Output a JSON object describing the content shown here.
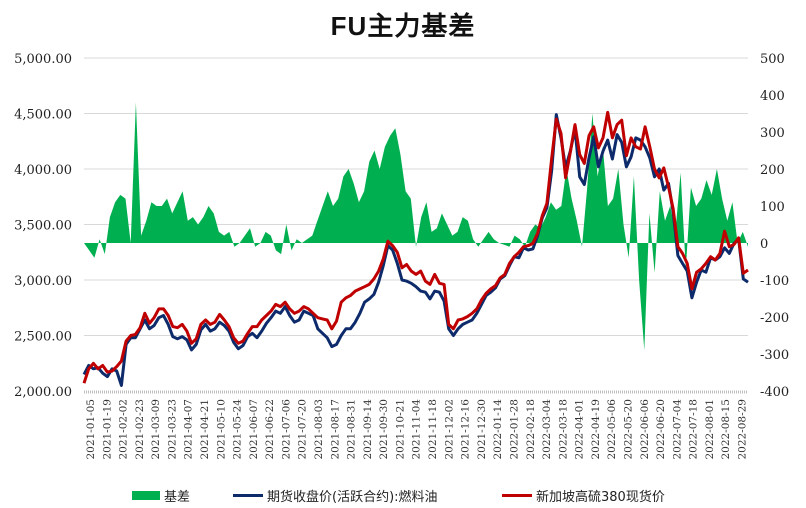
{
  "title": "FU主力基差",
  "chart_data": {
    "type": "line+area",
    "title": "FU主力基差",
    "left_axis": {
      "ticks": [
        "5,000.00",
        "4,500.00",
        "4,000.00",
        "3,500.00",
        "3,000.00",
        "2,500.00",
        "2,000.00"
      ],
      "ylim": [
        2000,
        5000
      ]
    },
    "right_axis": {
      "ticks": [
        "500",
        "400",
        "300",
        "200",
        "100",
        "0",
        "-100",
        "-200",
        "-300",
        "-400"
      ],
      "ylim": [
        -400,
        500
      ]
    },
    "grid": true,
    "legend_position": "bottom",
    "x_ticks": [
      "2021-01-05",
      "2021-01-19",
      "2021-02-02",
      "2021-02-23",
      "2021-03-09",
      "2021-03-23",
      "2021-04-07",
      "2021-04-21",
      "2021-05-10",
      "2021-05-24",
      "2021-06-07",
      "2021-06-22",
      "2021-07-06",
      "2021-07-20",
      "2021-08-03",
      "2021-08-17",
      "2021-08-31",
      "2021-09-14",
      "2021-09-30",
      "2021-10-21",
      "2021-11-04",
      "2021-11-18",
      "2021-12-02",
      "2021-12-16",
      "2021-12-30",
      "2022-01-14",
      "2022-01-28",
      "2022-02-18",
      "2022-03-04",
      "2022-03-18",
      "2022-04-01",
      "2022-04-19",
      "2022-05-06",
      "2022-05-20",
      "2022-06-06",
      "2022-06-20",
      "2022-07-04",
      "2022-07-18",
      "2022-08-01",
      "2022-08-15",
      "2022-08-29"
    ],
    "series": [
      {
        "name": "基差",
        "axis": "right",
        "type": "area",
        "color": "#00b050",
        "values": [
          0,
          -20,
          -40,
          10,
          -30,
          70,
          110,
          130,
          120,
          0,
          380,
          20,
          60,
          110,
          100,
          100,
          120,
          80,
          110,
          140,
          60,
          70,
          50,
          70,
          100,
          80,
          30,
          20,
          30,
          -10,
          0,
          20,
          40,
          -10,
          0,
          30,
          20,
          -20,
          -30,
          50,
          -20,
          10,
          0,
          10,
          20,
          60,
          100,
          140,
          100,
          120,
          180,
          200,
          160,
          110,
          140,
          220,
          250,
          200,
          260,
          290,
          310,
          240,
          140,
          120,
          -10,
          70,
          110,
          30,
          40,
          80,
          50,
          20,
          30,
          70,
          60,
          10,
          -10,
          10,
          30,
          10,
          0,
          -5,
          -10,
          20,
          10,
          -10,
          30,
          50,
          40,
          70,
          110,
          90,
          100,
          200,
          120,
          60,
          -10,
          150,
          350,
          180,
          260,
          100,
          120,
          200,
          50,
          -40,
          180,
          -100,
          -290,
          80,
          -80,
          140,
          60,
          100,
          30,
          190,
          -70,
          150,
          100,
          120,
          170,
          130,
          200,
          120,
          60,
          110,
          0,
          30,
          -10
        ],
        "note": "approximate readings"
      },
      {
        "name": "期货收盘价(活跃合约):燃料油",
        "axis": "left",
        "type": "line",
        "color": "#0d2a6b",
        "values": [
          2150,
          2230,
          2200,
          2210,
          2160,
          2130,
          2200,
          2180,
          2050,
          2420,
          2480,
          2480,
          2560,
          2640,
          2560,
          2590,
          2660,
          2680,
          2600,
          2490,
          2470,
          2490,
          2460,
          2370,
          2420,
          2550,
          2600,
          2540,
          2560,
          2620,
          2590,
          2540,
          2440,
          2380,
          2410,
          2490,
          2520,
          2480,
          2540,
          2610,
          2660,
          2720,
          2700,
          2760,
          2680,
          2620,
          2640,
          2720,
          2700,
          2680,
          2560,
          2520,
          2480,
          2400,
          2420,
          2500,
          2560,
          2560,
          2620,
          2700,
          2800,
          2830,
          2870,
          2980,
          3130,
          3310,
          3270,
          3150,
          3000,
          2990,
          2970,
          2940,
          2900,
          2890,
          2830,
          2900,
          2890,
          2810,
          2560,
          2500,
          2560,
          2600,
          2620,
          2640,
          2700,
          2780,
          2860,
          2890,
          2930,
          3010,
          3040,
          3130,
          3210,
          3200,
          3290,
          3270,
          3280,
          3400,
          3560,
          3650,
          3980,
          4490,
          4280,
          4010,
          4160,
          4360,
          3930,
          3860,
          4100,
          4290,
          4020,
          4160,
          4260,
          4090,
          4310,
          4240,
          4020,
          4110,
          4280,
          4260,
          4200,
          4100,
          3930,
          4000,
          3810,
          3870,
          3610,
          3220,
          3150,
          3080,
          2840,
          2980,
          3090,
          3070,
          3200,
          3180,
          3210,
          3290,
          3240,
          3330,
          3370,
          3010,
          2980
        ],
        "note": "approximate readings"
      },
      {
        "name": "新加坡高硫380现货价",
        "axis": "left",
        "type": "line",
        "color": "#c00000",
        "values": [
          2070,
          2200,
          2250,
          2200,
          2230,
          2170,
          2180,
          2220,
          2270,
          2450,
          2500,
          2510,
          2570,
          2700,
          2610,
          2660,
          2740,
          2740,
          2680,
          2580,
          2570,
          2600,
          2540,
          2430,
          2470,
          2600,
          2640,
          2600,
          2620,
          2690,
          2640,
          2580,
          2480,
          2430,
          2450,
          2520,
          2580,
          2580,
          2640,
          2680,
          2720,
          2780,
          2760,
          2800,
          2740,
          2700,
          2720,
          2760,
          2740,
          2700,
          2660,
          2650,
          2640,
          2560,
          2630,
          2800,
          2840,
          2860,
          2900,
          2920,
          2940,
          2960,
          3010,
          3080,
          3190,
          3350,
          3310,
          3250,
          3110,
          3140,
          3080,
          3050,
          3080,
          2990,
          2960,
          3050,
          2970,
          2960,
          2600,
          2560,
          2640,
          2650,
          2670,
          2700,
          2740,
          2820,
          2880,
          2920,
          2950,
          3020,
          3050,
          3150,
          3210,
          3250,
          3300,
          3310,
          3330,
          3420,
          3580,
          3690,
          4090,
          4450,
          4320,
          3920,
          4150,
          4400,
          4130,
          4050,
          4300,
          4380,
          4190,
          4280,
          4510,
          4280,
          4400,
          4440,
          4120,
          4280,
          4200,
          4180,
          4380,
          4200,
          4000,
          3920,
          4010,
          3840,
          3640,
          3300,
          3240,
          3150,
          2920,
          3070,
          3100,
          3150,
          3210,
          3180,
          3240,
          3440,
          3300,
          3320,
          3380,
          3060,
          3090
        ],
        "note": "approximate readings"
      }
    ]
  },
  "legend": {
    "basis": "基差",
    "futures": "期货收盘价(活跃合约):燃料油",
    "spot": "新加坡高硫380现货价"
  }
}
